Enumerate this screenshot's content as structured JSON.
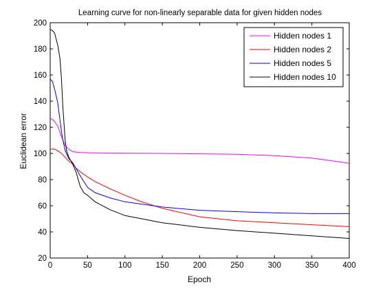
{
  "chart_data": {
    "type": "line",
    "title": "Learning curve for non-linearly separable data for given hidden nodes",
    "xlabel": "Epoch",
    "ylabel": "Euclidean error",
    "xlim": [
      0,
      400
    ],
    "ylim": [
      20,
      200
    ],
    "xticks": [
      0,
      50,
      100,
      150,
      200,
      250,
      300,
      350,
      400
    ],
    "yticks": [
      20,
      40,
      60,
      80,
      100,
      120,
      140,
      160,
      180,
      200
    ],
    "grid": false,
    "legend": "top-right",
    "series": [
      {
        "name": "Hidden nodes 1",
        "color": "#ff00ff",
        "x": [
          0,
          5,
          10,
          15,
          20,
          25,
          30,
          35,
          40,
          45,
          50,
          60,
          80,
          100,
          150,
          200,
          250,
          300,
          350,
          400
        ],
        "y": [
          127,
          125,
          121,
          113,
          106,
          103,
          101.5,
          101,
          100.7,
          100.6,
          100.5,
          100.4,
          100.3,
          100.2,
          100,
          99.7,
          99.3,
          98.3,
          96.5,
          92.5
        ]
      },
      {
        "name": "Hidden nodes 2",
        "color": "#ff0000",
        "x": [
          0,
          5,
          10,
          15,
          20,
          25,
          30,
          35,
          40,
          50,
          60,
          80,
          100,
          120,
          150,
          200,
          250,
          300,
          350,
          400
        ],
        "y": [
          103,
          103.5,
          102,
          100,
          97,
          94,
          92,
          88.5,
          86,
          82,
          78.5,
          73,
          68,
          63.5,
          58,
          51.5,
          48.5,
          47,
          45.5,
          44
        ]
      },
      {
        "name": "Hidden nodes 5",
        "color": "#0000ff",
        "x": [
          0,
          3,
          6,
          10,
          13,
          16,
          20,
          25,
          30,
          35,
          40,
          50,
          60,
          80,
          100,
          150,
          200,
          250,
          300,
          350,
          400
        ],
        "y": [
          157,
          155,
          149,
          139,
          126,
          113,
          102,
          96,
          93,
          88,
          83,
          74,
          70,
          66,
          63,
          59,
          56.5,
          55.5,
          54.5,
          54,
          54
        ]
      },
      {
        "name": "Hidden nodes 10",
        "color": "#000000",
        "x": [
          0,
          3,
          6,
          10,
          13,
          15,
          17,
          20,
          22,
          25,
          30,
          35,
          40,
          45,
          50,
          60,
          80,
          100,
          150,
          200,
          250,
          300,
          350,
          400
        ],
        "y": [
          195,
          194,
          192,
          183,
          173,
          158,
          135,
          110,
          102,
          97,
          92,
          85,
          75,
          70,
          68,
          63,
          57,
          52.5,
          47,
          43.5,
          41,
          39,
          37,
          35
        ]
      }
    ]
  }
}
